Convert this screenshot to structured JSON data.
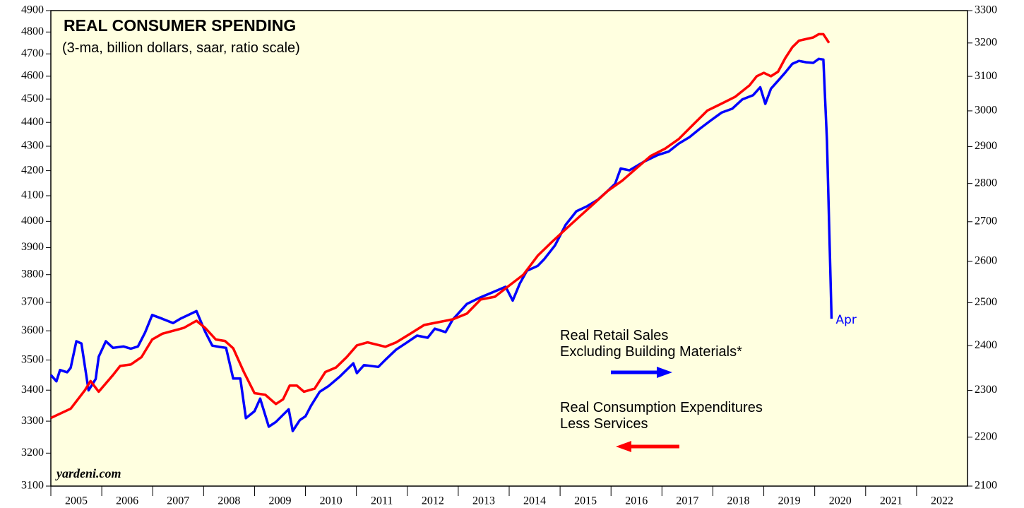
{
  "chart_data": {
    "type": "line",
    "title": "REAL CONSUMER SPENDING",
    "subtitle": "(3-ma, billion dollars, saar, ratio scale)",
    "source": "yardeni.com",
    "end_label": "Apr",
    "log": true,
    "grid": false,
    "categories": [
      "2005",
      "2006",
      "2007",
      "2008",
      "2009",
      "2010",
      "2011",
      "2012",
      "2013",
      "2014",
      "2015",
      "2016",
      "2017",
      "2018",
      "2019",
      "2020",
      "2021",
      "2022"
    ],
    "xlim": [
      2005,
      2023
    ],
    "ylim": [
      3100,
      4900
    ],
    "yticks": [
      3100,
      3200,
      3300,
      3400,
      3500,
      3600,
      3700,
      3800,
      3900,
      4000,
      4100,
      4200,
      4300,
      4400,
      4500,
      4600,
      4700,
      4800,
      4900
    ],
    "y2lim": [
      2100,
      3300
    ],
    "y2ticks": [
      2100,
      2200,
      2300,
      2400,
      2500,
      2600,
      2700,
      2800,
      2900,
      3000,
      3100,
      3200,
      3300
    ],
    "series": [
      {
        "name": "Real Retail Sales\nExcluding Building Materials*",
        "color": "#0000ff",
        "axis": "y2",
        "x": [
          2005.0,
          2005.11,
          2005.18,
          2005.32,
          2005.39,
          2005.5,
          2005.6,
          2005.74,
          2005.88,
          2005.94,
          2006.08,
          2006.22,
          2006.43,
          2006.57,
          2006.71,
          2006.85,
          2006.99,
          2007.19,
          2007.4,
          2007.54,
          2007.68,
          2007.86,
          2008.03,
          2008.17,
          2008.31,
          2008.44,
          2008.58,
          2008.72,
          2008.83,
          2009.0,
          2009.11,
          2009.28,
          2009.42,
          2009.53,
          2009.67,
          2009.75,
          2009.89,
          2010.0,
          2010.11,
          2010.28,
          2010.46,
          2010.67,
          2010.94,
          2011.01,
          2011.15,
          2011.43,
          2011.57,
          2011.78,
          2011.99,
          2012.19,
          2012.4,
          2012.54,
          2012.75,
          2012.89,
          2013.17,
          2013.44,
          2013.72,
          2013.93,
          2014.07,
          2014.21,
          2014.35,
          2014.56,
          2014.69,
          2014.9,
          2015.11,
          2015.32,
          2015.53,
          2015.74,
          2015.94,
          2016.08,
          2016.19,
          2016.36,
          2016.64,
          2016.92,
          2017.13,
          2017.33,
          2017.54,
          2017.75,
          2017.96,
          2018.17,
          2018.38,
          2018.58,
          2018.79,
          2018.93,
          2019.03,
          2019.14,
          2019.28,
          2019.42,
          2019.56,
          2019.69,
          2019.83,
          2019.97,
          2020.08,
          2020.17,
          2020.24,
          2020.33
        ],
        "values": [
          2334,
          2320,
          2345,
          2340,
          2350,
          2410,
          2405,
          2300,
          2325,
          2375,
          2410,
          2395,
          2398,
          2393,
          2398,
          2430,
          2471,
          2462,
          2452,
          2462,
          2470,
          2480,
          2432,
          2400,
          2397,
          2395,
          2326,
          2326,
          2240,
          2255,
          2282,
          2222,
          2232,
          2244,
          2259,
          2213,
          2236,
          2244,
          2267,
          2297,
          2310,
          2330,
          2360,
          2338,
          2356,
          2352,
          2368,
          2391,
          2407,
          2423,
          2418,
          2439,
          2431,
          2460,
          2497,
          2513,
          2527,
          2538,
          2505,
          2546,
          2577,
          2589,
          2606,
          2640,
          2692,
          2727,
          2740,
          2757,
          2781,
          2799,
          2840,
          2835,
          2858,
          2877,
          2886,
          2908,
          2926,
          2950,
          2973,
          2995,
          3006,
          3033,
          3045,
          3068,
          3020,
          3064,
          3087,
          3111,
          3137,
          3146,
          3142,
          3140,
          3152,
          3150,
          2915,
          2462
        ]
      },
      {
        "name": "Real Consumption Expenditures\nLess Services",
        "color": "#ff0000",
        "axis": "y",
        "x": [
          2005.0,
          2005.39,
          2005.67,
          2005.78,
          2005.94,
          2006.22,
          2006.36,
          2006.57,
          2006.78,
          2006.99,
          2007.19,
          2007.4,
          2007.61,
          2007.86,
          2008.03,
          2008.24,
          2008.42,
          2008.58,
          2008.79,
          2009.0,
          2009.21,
          2009.42,
          2009.56,
          2009.69,
          2009.83,
          2009.97,
          2010.18,
          2010.39,
          2010.6,
          2010.81,
          2011.01,
          2011.22,
          2011.57,
          2011.78,
          2012.06,
          2012.33,
          2012.61,
          2012.89,
          2013.17,
          2013.44,
          2013.72,
          2014.0,
          2014.28,
          2014.56,
          2014.83,
          2015.11,
          2015.39,
          2015.67,
          2015.94,
          2016.22,
          2016.5,
          2016.78,
          2017.06,
          2017.33,
          2017.61,
          2017.89,
          2018.17,
          2018.44,
          2018.72,
          2018.86,
          2019.0,
          2019.14,
          2019.28,
          2019.42,
          2019.56,
          2019.69,
          2019.97,
          2020.08,
          2020.17,
          2020.28
        ],
        "values": [
          3310,
          3340,
          3400,
          3430,
          3395,
          3450,
          3480,
          3485,
          3510,
          3570,
          3590,
          3600,
          3610,
          3635,
          3610,
          3570,
          3565,
          3540,
          3460,
          3390,
          3385,
          3355,
          3370,
          3415,
          3415,
          3395,
          3405,
          3460,
          3475,
          3510,
          3550,
          3560,
          3545,
          3560,
          3590,
          3620,
          3630,
          3640,
          3660,
          3710,
          3720,
          3760,
          3800,
          3870,
          3920,
          3970,
          4020,
          4070,
          4120,
          4160,
          4210,
          4260,
          4290,
          4330,
          4390,
          4450,
          4480,
          4510,
          4560,
          4600,
          4615,
          4600,
          4620,
          4680,
          4730,
          4760,
          4775,
          4790,
          4790,
          4750
        ]
      }
    ]
  }
}
